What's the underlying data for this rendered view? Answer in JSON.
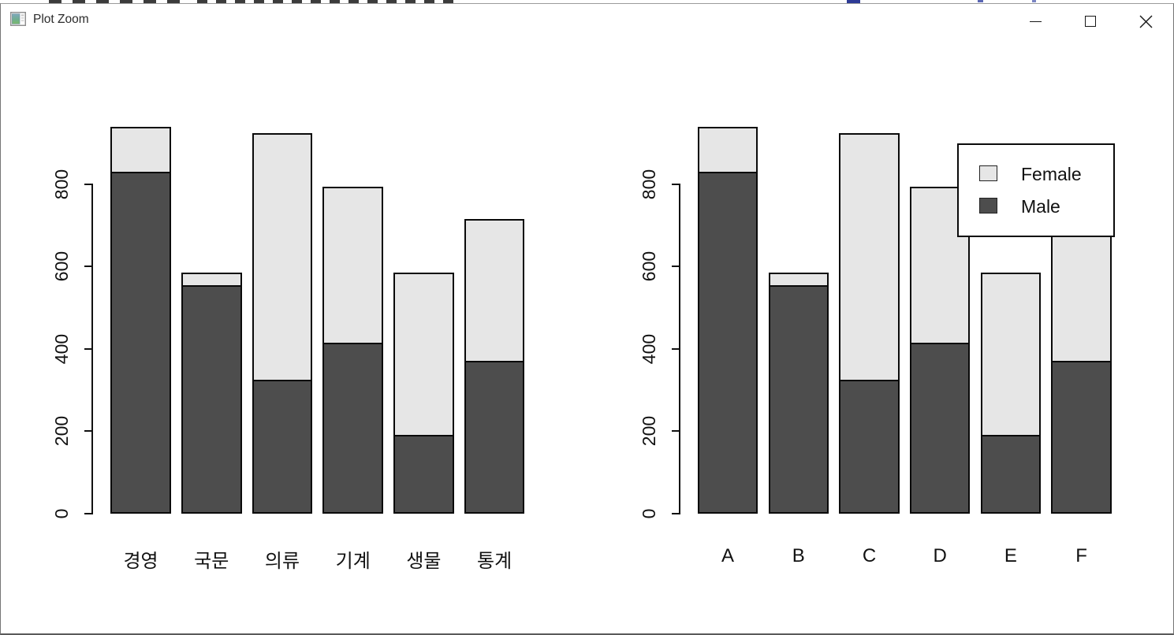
{
  "window": {
    "title": "Plot Zoom",
    "controls": {
      "minimize": "minimize",
      "maximize": "maximize",
      "close": "close"
    }
  },
  "colors": {
    "male": "#4d4d4d",
    "female": "#e6e6e6",
    "bar_border": "#0a0a0a",
    "text": "#111111"
  },
  "chart_data": [
    {
      "type": "bar",
      "stacked": true,
      "title": "",
      "xlabel": "",
      "ylabel": "",
      "categories": [
        "경영",
        "국문",
        "의류",
        "기계",
        "생물",
        "통계"
      ],
      "series": [
        {
          "name": "Male",
          "color": "#4d4d4d",
          "values": [
            830,
            555,
            325,
            415,
            190,
            370
          ]
        },
        {
          "name": "Female",
          "color": "#e6e6e6",
          "values": [
            110,
            30,
            600,
            380,
            395,
            345
          ]
        }
      ],
      "totals": [
        940,
        585,
        925,
        795,
        585,
        715
      ],
      "y_ticks": [
        0,
        200,
        400,
        600,
        800
      ],
      "ylim": [
        0,
        940
      ],
      "grid": false,
      "legend": null
    },
    {
      "type": "bar",
      "stacked": true,
      "title": "",
      "xlabel": "",
      "ylabel": "",
      "categories": [
        "A",
        "B",
        "C",
        "D",
        "E",
        "F"
      ],
      "series": [
        {
          "name": "Male",
          "color": "#4d4d4d",
          "values": [
            830,
            555,
            325,
            415,
            190,
            370
          ]
        },
        {
          "name": "Female",
          "color": "#e6e6e6",
          "values": [
            110,
            30,
            600,
            380,
            395,
            345
          ]
        }
      ],
      "totals": [
        940,
        585,
        925,
        795,
        585,
        715
      ],
      "y_ticks": [
        0,
        200,
        400,
        600,
        800
      ],
      "ylim": [
        0,
        940
      ],
      "grid": false,
      "legend": {
        "position": "top-right",
        "entries": [
          {
            "label": "Female",
            "color": "#e6e6e6"
          },
          {
            "label": "Male",
            "color": "#4d4d4d"
          }
        ]
      }
    }
  ]
}
